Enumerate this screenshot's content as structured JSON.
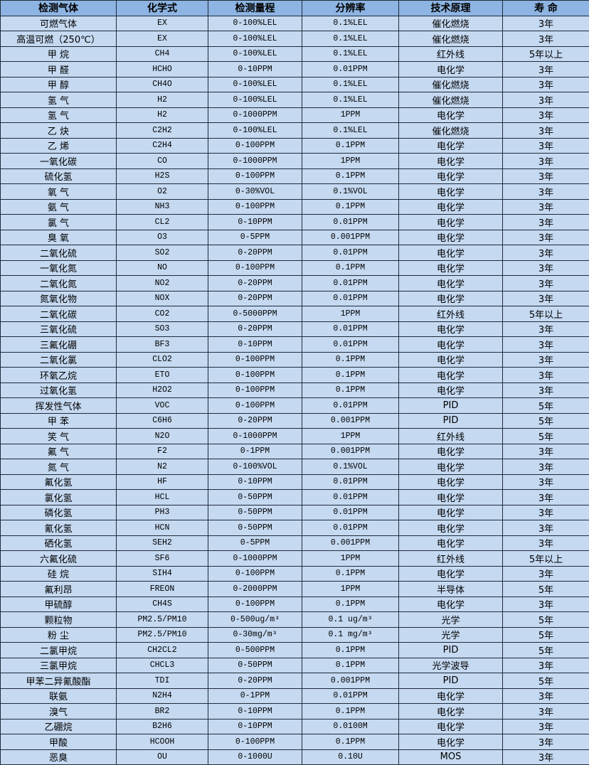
{
  "colors": {
    "header_bg": "#8db4e2",
    "row_bg": "#c5d9f1",
    "border": "#1f2a38"
  },
  "headers": [
    "检测气体",
    "化学式",
    "检测量程",
    "分辨率",
    "技术原理",
    "寿 命"
  ],
  "rows": [
    [
      "可燃气体",
      "EX",
      "0-100%LEL",
      "0.1%LEL",
      "催化燃烧",
      "3年"
    ],
    [
      "高温可燃（250℃）",
      "EX",
      "0-100%LEL",
      "0.1%LEL",
      "催化燃烧",
      "3年"
    ],
    [
      "甲 烷",
      "CH4",
      "0-100%LEL",
      "0.1%LEL",
      "红外线",
      "5年以上"
    ],
    [
      "甲 醛",
      "HCHO",
      "0-10PPM",
      "0.01PPM",
      "电化学",
      "3年"
    ],
    [
      "甲 醇",
      "CH4O",
      "0-100%LEL",
      "0.1%LEL",
      "催化燃烧",
      "3年"
    ],
    [
      "氢 气",
      "H2",
      "0-100%LEL",
      "0.1%LEL",
      "催化燃烧",
      "3年"
    ],
    [
      "氢 气",
      "H2",
      "0-1000PPM",
      "1PPM",
      "电化学",
      "3年"
    ],
    [
      "乙 炔",
      "C2H2",
      "0-100%LEL",
      "0.1%LEL",
      "催化燃烧",
      "3年"
    ],
    [
      "乙 烯",
      "C2H4",
      "0-100PPM",
      "0.1PPM",
      "电化学",
      "3年"
    ],
    [
      "一氧化碳",
      "CO",
      "0-1000PPM",
      "1PPM",
      "电化学",
      "3年"
    ],
    [
      "硫化氢",
      "H2S",
      "0-100PPM",
      "0.1PPM",
      "电化学",
      "3年"
    ],
    [
      "氧 气",
      "O2",
      "0-30%VOL",
      "0.1%VOL",
      "电化学",
      "3年"
    ],
    [
      "氨 气",
      "NH3",
      "0-100PPM",
      "0.1PPM",
      "电化学",
      "3年"
    ],
    [
      "氯 气",
      "CL2",
      "0-10PPM",
      "0.01PPM",
      "电化学",
      "3年"
    ],
    [
      "臭 氧",
      "O3",
      "0-5PPM",
      "0.001PPM",
      "电化学",
      "3年"
    ],
    [
      "二氧化硫",
      "SO2",
      "0-20PPM",
      "0.01PPM",
      "电化学",
      "3年"
    ],
    [
      "一氧化氮",
      "NO",
      "0-100PPM",
      "0.1PPM",
      "电化学",
      "3年"
    ],
    [
      "二氧化氮",
      "NO2",
      "0-20PPM",
      "0.01PPM",
      "电化学",
      "3年"
    ],
    [
      "氮氧化物",
      "NOX",
      "0-20PPM",
      "0.01PPM",
      "电化学",
      "3年"
    ],
    [
      "二氧化碳",
      "CO2",
      "0-5000PPM",
      "1PPM",
      "红外线",
      "5年以上"
    ],
    [
      "三氧化硫",
      "SO3",
      "0-20PPM",
      "0.01PPM",
      "电化学",
      "3年"
    ],
    [
      "三氟化硼",
      "BF3",
      "0-10PPM",
      "0.01PPM",
      "电化学",
      "3年"
    ],
    [
      "二氧化氯",
      "CLO2",
      "0-100PPM",
      "0.1PPM",
      "电化学",
      "3年"
    ],
    [
      "环氧乙烷",
      "ETO",
      "0-100PPM",
      "0.1PPM",
      "电化学",
      "3年"
    ],
    [
      "过氧化氢",
      "H2O2",
      "0-100PPM",
      "0.1PPM",
      "电化学",
      "3年"
    ],
    [
      "挥发性气体",
      "VOC",
      "0-100PPM",
      "0.01PPM",
      "PID",
      "5年"
    ],
    [
      "甲 苯",
      "C6H6",
      "0-20PPM",
      "0.001PPM",
      "PID",
      "5年"
    ],
    [
      "笑 气",
      "N2O",
      "0-1000PPM",
      "1PPM",
      "红外线",
      "5年"
    ],
    [
      "氟 气",
      "F2",
      "0-1PPM",
      "0.001PPM",
      "电化学",
      "3年"
    ],
    [
      "氮 气",
      "N2",
      "0-100%VOL",
      "0.1%VOL",
      "电化学",
      "3年"
    ],
    [
      "氟化氢",
      "HF",
      "0-10PPM",
      "0.01PPM",
      "电化学",
      "3年"
    ],
    [
      "氯化氢",
      "HCL",
      "0-50PPM",
      "0.01PPM",
      "电化学",
      "3年"
    ],
    [
      "磷化氢",
      "PH3",
      "0-50PPM",
      "0.01PPM",
      "电化学",
      "3年"
    ],
    [
      "氰化氢",
      "HCN",
      "0-50PPM",
      "0.01PPM",
      "电化学",
      "3年"
    ],
    [
      "硒化氢",
      "SEH2",
      "0-5PPM",
      "0.001PPM",
      "电化学",
      "3年"
    ],
    [
      "六氟化硫",
      "SF6",
      "0-1000PPM",
      "1PPM",
      "红外线",
      "5年以上"
    ],
    [
      "硅 烷",
      "SIH4",
      "0-100PPM",
      "0.1PPM",
      "电化学",
      "3年"
    ],
    [
      "氟利昂",
      "FREON",
      "0-2000PPM",
      "1PPM",
      "半导体",
      "5年"
    ],
    [
      "甲硫醇",
      "CH4S",
      "0-100PPM",
      "0.1PPM",
      "电化学",
      "3年"
    ],
    [
      "颗粒物",
      "PM2.5/PM10",
      "0-500ug/m³",
      "0.1 ug/m³",
      "光学",
      "5年"
    ],
    [
      "粉 尘",
      "PM2.5/PM10",
      "0-30mg/m³",
      "0.1 mg/m³",
      "光学",
      "5年"
    ],
    [
      "二氯甲烷",
      "CH2CL2",
      "0-500PPM",
      "0.1PPM",
      "PID",
      "5年"
    ],
    [
      "三氯甲烷",
      "CHCL3",
      "0-50PPM",
      "0.1PPM",
      "光学波导",
      "3年"
    ],
    [
      "甲苯二异氰酸酯",
      "TDI",
      "0-20PPM",
      "0.001PPM",
      "PID",
      "5年"
    ],
    [
      "联氨",
      "N2H4",
      "0-1PPM",
      "0.01PPM",
      "电化学",
      "3年"
    ],
    [
      "溴气",
      "BR2",
      "0-10PPM",
      "0.1PPM",
      "电化学",
      "3年"
    ],
    [
      "乙硼烷",
      "B2H6",
      "0-10PPM",
      "0.0100M",
      "电化学",
      "3年"
    ],
    [
      "甲酸",
      "HCOOH",
      "0-100PPM",
      "0.1PPM",
      "电化学",
      "3年"
    ],
    [
      "恶臭",
      "OU",
      "0-1000U",
      "0.10U",
      "MOS",
      "3年"
    ]
  ]
}
